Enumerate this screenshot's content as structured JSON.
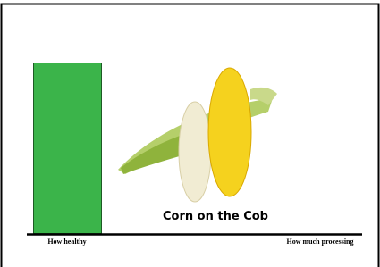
{
  "bar_caption": "Corn on the Cob",
  "axis": {
    "left_label": "How healthy",
    "right_label": "How much processing"
  }
}
